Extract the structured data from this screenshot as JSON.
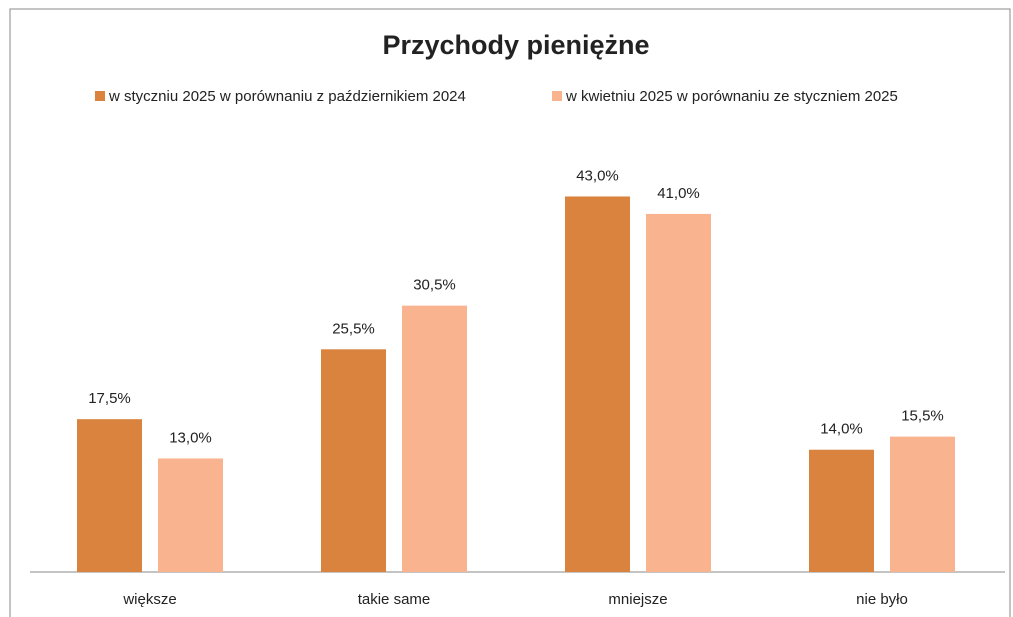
{
  "chart_data": {
    "type": "bar",
    "title": "Przychody pieniężne",
    "categories": [
      "większe",
      "takie same",
      "mniejsze",
      "nie było"
    ],
    "series": [
      {
        "name": "w styczniu 2025 w porównaniu z październikiem 2024",
        "color": "#d9833f",
        "values": [
          17.5,
          25.5,
          43.0,
          14.0
        ],
        "value_labels": [
          "17,5%",
          "25,5%",
          "43,0%",
          "14,0%"
        ]
      },
      {
        "name": "w kwietniu 2025 w porównaniu ze styczniem 2025",
        "color": "#f9b48f",
        "values": [
          13.0,
          30.5,
          41.0,
          15.5
        ],
        "value_labels": [
          "13,0%",
          "30,5%",
          "41,0%",
          "15,5%"
        ]
      }
    ],
    "ylim": [
      0,
      45
    ],
    "legend": "top"
  }
}
